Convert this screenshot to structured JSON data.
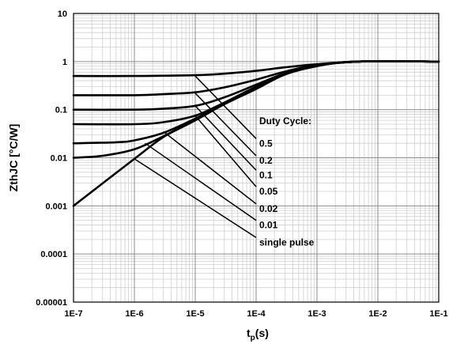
{
  "chart_data": {
    "type": "line",
    "title": "",
    "xlabel": "t_p(s)",
    "xlabel_main": "t",
    "xlabel_sub": "p",
    "xlabel_tail": "(s)",
    "ylabel": "ZthJC [°C/W]",
    "x_scale": "log",
    "y_scale": "log",
    "xlim": [
      1e-07,
      0.1
    ],
    "ylim": [
      1e-05,
      10
    ],
    "grid": true,
    "x_ticks": [
      "1E-7",
      "1E-6",
      "1E-5",
      "1E-4",
      "1E-3",
      "1E-2",
      "1E-1"
    ],
    "y_ticks": [
      "0.00001",
      "0.0001",
      "0.001",
      "0.01",
      "0.1",
      "1",
      "10"
    ],
    "legend_title": "Duty Cycle:",
    "series": [
      {
        "name": "0.5",
        "points": [
          [
            1e-07,
            0.5
          ],
          [
            1e-06,
            0.5
          ],
          [
            1e-05,
            0.52
          ],
          [
            3e-05,
            0.56
          ],
          [
            0.0001,
            0.64
          ],
          [
            0.0003,
            0.76
          ],
          [
            0.001,
            0.88
          ],
          [
            0.005,
            1.0
          ],
          [
            0.1,
            1.0
          ]
        ]
      },
      {
        "name": "0.2",
        "points": [
          [
            1e-07,
            0.2
          ],
          [
            1e-06,
            0.2
          ],
          [
            3e-06,
            0.21
          ],
          [
            1e-05,
            0.23
          ],
          [
            3e-05,
            0.29
          ],
          [
            0.0001,
            0.42
          ],
          [
            0.0003,
            0.62
          ],
          [
            0.001,
            0.85
          ],
          [
            0.005,
            1.0
          ],
          [
            0.1,
            1.0
          ]
        ]
      },
      {
        "name": "0.1",
        "points": [
          [
            1e-07,
            0.1
          ],
          [
            1e-06,
            0.1
          ],
          [
            3e-06,
            0.105
          ],
          [
            1e-05,
            0.12
          ],
          [
            3e-05,
            0.18
          ],
          [
            0.0001,
            0.33
          ],
          [
            0.0003,
            0.57
          ],
          [
            0.001,
            0.83
          ],
          [
            0.005,
            1.0
          ],
          [
            0.1,
            1.0
          ]
        ]
      },
      {
        "name": "0.05",
        "points": [
          [
            1e-07,
            0.05
          ],
          [
            1e-06,
            0.05
          ],
          [
            3e-06,
            0.055
          ],
          [
            1e-05,
            0.075
          ],
          [
            3e-05,
            0.14
          ],
          [
            0.0001,
            0.3
          ],
          [
            0.0003,
            0.56
          ],
          [
            0.001,
            0.82
          ],
          [
            0.005,
            1.0
          ],
          [
            0.1,
            1.0
          ]
        ]
      },
      {
        "name": "0.02",
        "points": [
          [
            1e-07,
            0.02
          ],
          [
            5e-07,
            0.021
          ],
          [
            1e-06,
            0.023
          ],
          [
            3e-06,
            0.033
          ],
          [
            1e-05,
            0.065
          ],
          [
            3e-05,
            0.13
          ],
          [
            0.0001,
            0.28
          ],
          [
            0.0003,
            0.55
          ],
          [
            0.001,
            0.82
          ],
          [
            0.005,
            1.0
          ],
          [
            0.1,
            1.0
          ]
        ]
      },
      {
        "name": "0.01",
        "points": [
          [
            1e-07,
            0.01
          ],
          [
            3e-07,
            0.011
          ],
          [
            1e-06,
            0.015
          ],
          [
            3e-06,
            0.028
          ],
          [
            1e-05,
            0.06
          ],
          [
            3e-05,
            0.13
          ],
          [
            0.0001,
            0.27
          ],
          [
            0.0003,
            0.55
          ],
          [
            0.001,
            0.82
          ],
          [
            0.005,
            1.0
          ],
          [
            0.1,
            1.0
          ]
        ]
      },
      {
        "name": "single pulse",
        "points": [
          [
            1e-07,
            0.001
          ],
          [
            1e-06,
            0.0095
          ],
          [
            3e-06,
            0.027
          ],
          [
            1e-05,
            0.062
          ],
          [
            3e-05,
            0.13
          ],
          [
            0.0001,
            0.27
          ],
          [
            0.0003,
            0.54
          ],
          [
            0.001,
            0.8
          ],
          [
            0.004,
            1.0
          ],
          [
            0.1,
            1.0
          ]
        ]
      }
    ],
    "leaders": [
      {
        "label": "0.5",
        "from": [
          1e-05,
          0.5
        ],
        "to": [
          0.0001,
          0.025
        ]
      },
      {
        "label": "0.2",
        "from": [
          1e-05,
          0.22
        ],
        "to": [
          0.0001,
          0.011
        ]
      },
      {
        "label": "0.1",
        "from": [
          1e-05,
          0.12
        ],
        "to": [
          0.0001,
          0.0055
        ]
      },
      {
        "label": "0.05",
        "from": [
          1e-05,
          0.075
        ],
        "to": [
          0.0001,
          0.0025
        ]
      },
      {
        "label": "0.02",
        "from": [
          3e-06,
          0.035
        ],
        "to": [
          0.0001,
          0.0011
        ]
      },
      {
        "label": "0.01",
        "from": [
          1.5e-06,
          0.02
        ],
        "to": [
          0.0001,
          0.0005
        ]
      },
      {
        "label": "single pulse",
        "from": [
          1e-06,
          0.0095
        ],
        "to": [
          0.0001,
          0.00022
        ]
      }
    ]
  }
}
